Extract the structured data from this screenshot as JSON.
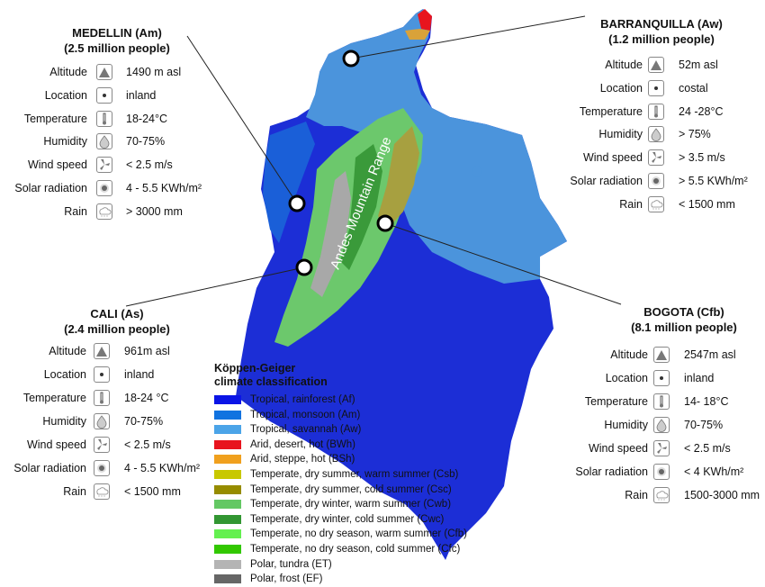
{
  "map": {
    "mountain_label": "Andes Mountain Range"
  },
  "cities": [
    {
      "id": "medellin",
      "name": "MEDELLIN (Am)",
      "population": "(2.5 million people)",
      "values": [
        "1490 m asl",
        "inland",
        "18-24°C",
        "70-75%",
        "< 2.5 m/s",
        "4 - 5.5 KWh/m²",
        "> 3000 mm"
      ]
    },
    {
      "id": "barranquilla",
      "name": "BARRANQUILLA (Aw)",
      "population": "(1.2 million people)",
      "values": [
        "52m asl",
        "costal",
        "24 -28°C",
        "> 75%",
        "> 3.5 m/s",
        "> 5.5 KWh/m²",
        "< 1500 mm"
      ]
    },
    {
      "id": "cali",
      "name": "CALI (As)",
      "population": "(2.4 million people)",
      "values": [
        "961m asl",
        "inland",
        "18-24 °C",
        "70-75%",
        "< 2.5 m/s",
        "4 - 5.5 KWh/m²",
        "< 1500 mm"
      ]
    },
    {
      "id": "bogota",
      "name": "BOGOTA (Cfb)",
      "population": "(8.1 million people)",
      "values": [
        "2547m asl",
        "inland",
        "14- 18°C",
        "70-75%",
        "< 2.5 m/s",
        "< 4 KWh/m²",
        "1500-3000 mm"
      ]
    }
  ],
  "attribute_labels": [
    "Altitude",
    "Location",
    "Temperature",
    "Humidity",
    "Wind speed",
    "Solar radiation",
    "Rain"
  ],
  "attribute_icons": [
    "mountain-icon",
    "location-dot-icon",
    "thermometer-icon",
    "humidity-drop-icon",
    "wind-fan-icon",
    "solar-radiation-icon",
    "rain-cloud-icon"
  ],
  "legend": {
    "title_line1": "Köppen-Geiger",
    "title_line2": "climate classification",
    "items": [
      {
        "label": "Tropical, rainforest (Af)",
        "color": "#0a14e6"
      },
      {
        "label": "Tropical, monsoon (Am)",
        "color": "#1173e0"
      },
      {
        "label": "Tropical, savannah (Aw)",
        "color": "#4ba4e8"
      },
      {
        "label": "Arid, desert, hot (BWh)",
        "color": "#e8141e"
      },
      {
        "label": "Arid, steppe, hot (BSh)",
        "color": "#f0a01e"
      },
      {
        "label": "Temperate, dry summer, warm summer (Csb)",
        "color": "#c8c800"
      },
      {
        "label": "Temperate, dry summer, cold summer (Csc)",
        "color": "#968c00"
      },
      {
        "label": "Temperate, dry winter, warm summer (Cwb)",
        "color": "#64c864"
      },
      {
        "label": "Temperate, dry winter, cold summer (Cwc)",
        "color": "#329632"
      },
      {
        "label": "Temperate, no dry season, warm summer (Cfb)",
        "color": "#64f050"
      },
      {
        "label": "Temperate, no dry season, cold summer (Cfc)",
        "color": "#32c800"
      },
      {
        "label": "Polar, tundra (ET)",
        "color": "#b4b4b4"
      },
      {
        "label": "Polar, frost (EF)",
        "color": "#666666"
      }
    ]
  }
}
